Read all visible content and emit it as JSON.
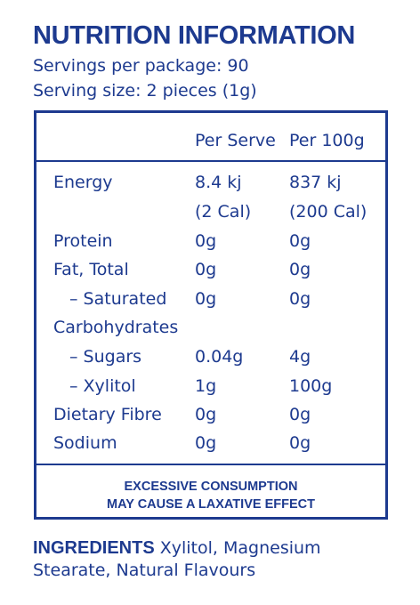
{
  "header": {
    "title": "NUTRITION INFORMATION",
    "servings": "Servings per package: 90",
    "serving_size": "Serving size: 2 pieces (1g)"
  },
  "panel": {
    "col_per_serve": "Per Serve",
    "col_per_100g": "Per 100g",
    "rows": [
      {
        "label": "Energy",
        "per_serve": "8.4 kj",
        "per_100g": "837 kj"
      },
      {
        "label": "",
        "per_serve": "(2 Cal)",
        "per_100g": "(200 Cal)"
      },
      {
        "label": "Protein",
        "per_serve": "0g",
        "per_100g": "0g"
      },
      {
        "label": "Fat, Total",
        "per_serve": "0g",
        "per_100g": "0g"
      },
      {
        "label": "– Saturated",
        "per_serve": "0g",
        "per_100g": "0g"
      },
      {
        "label": "Carbohydrates",
        "per_serve": "",
        "per_100g": ""
      },
      {
        "label": "– Sugars",
        "per_serve": "0.04g",
        "per_100g": "4g"
      },
      {
        "label": "– Xylitol",
        "per_serve": "1g",
        "per_100g": "100g"
      },
      {
        "label": "Dietary Fibre",
        "per_serve": "0g",
        "per_100g": "0g"
      },
      {
        "label": "Sodium",
        "per_serve": "0g",
        "per_100g": "0g"
      }
    ],
    "warning_line1": "EXCESSIVE CONSUMPTION",
    "warning_line2": "MAY CAUSE A LAXATIVE EFFECT"
  },
  "ingredients": {
    "heading": "INGREDIENTS",
    "text": "Xylitol, Magnesium Stearate, Natural Flavours"
  },
  "colors": {
    "ink": "#1d3a8f",
    "background": "#ffffff"
  }
}
